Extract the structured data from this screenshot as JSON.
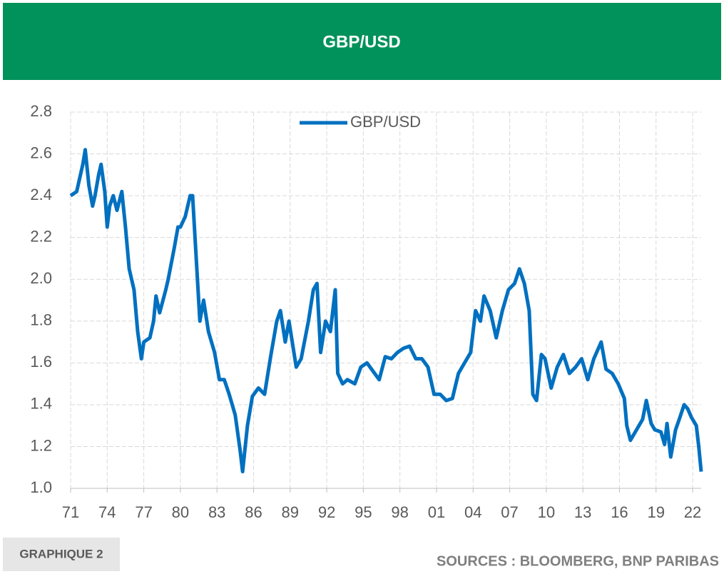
{
  "chart_data": {
    "type": "line",
    "title": "GBP/USD",
    "series": [
      {
        "name": "GBP/USD",
        "color": "#0070c0",
        "x": [
          1971.0,
          1971.5,
          1972.0,
          1972.2,
          1972.5,
          1972.8,
          1973.0,
          1973.3,
          1973.5,
          1973.8,
          1974.0,
          1974.2,
          1974.5,
          1974.8,
          1975.2,
          1975.5,
          1975.8,
          1976.2,
          1976.5,
          1976.8,
          1977.0,
          1977.5,
          1977.8,
          1978.0,
          1978.3,
          1978.8,
          1979.0,
          1979.5,
          1979.8,
          1980.0,
          1980.4,
          1980.8,
          1981.0,
          1981.3,
          1981.6,
          1981.9,
          1982.3,
          1982.8,
          1983.2,
          1983.6,
          1984.0,
          1984.5,
          1984.9,
          1985.1,
          1985.5,
          1985.9,
          1986.4,
          1986.9,
          1987.4,
          1987.9,
          1988.2,
          1988.6,
          1988.9,
          1989.5,
          1989.9,
          1990.5,
          1990.9,
          1991.2,
          1991.5,
          1991.9,
          1992.3,
          1992.7,
          1992.9,
          1993.3,
          1993.7,
          1994.3,
          1994.8,
          1995.3,
          1995.8,
          1996.3,
          1996.8,
          1997.3,
          1997.8,
          1998.3,
          1998.8,
          1999.3,
          1999.8,
          2000.3,
          2000.8,
          2001.3,
          2001.8,
          2002.3,
          2002.8,
          2003.3,
          2003.8,
          2004.2,
          2004.6,
          2004.9,
          2005.4,
          2005.9,
          2006.4,
          2006.9,
          2007.4,
          2007.8,
          2008.2,
          2008.6,
          2008.9,
          2009.2,
          2009.6,
          2009.9,
          2010.4,
          2010.9,
          2011.4,
          2011.9,
          2012.4,
          2012.9,
          2013.4,
          2013.9,
          2014.5,
          2014.9,
          2015.4,
          2015.9,
          2016.4,
          2016.6,
          2016.9,
          2017.4,
          2017.9,
          2018.2,
          2018.6,
          2018.9,
          2019.4,
          2019.7,
          2019.9,
          2020.2,
          2020.6,
          2020.9,
          2021.3,
          2021.6,
          2021.9,
          2022.3,
          2022.5,
          2022.7
        ],
        "values": [
          2.4,
          2.42,
          2.55,
          2.62,
          2.45,
          2.35,
          2.4,
          2.5,
          2.55,
          2.42,
          2.25,
          2.35,
          2.4,
          2.33,
          2.42,
          2.25,
          2.05,
          1.95,
          1.75,
          1.62,
          1.7,
          1.72,
          1.8,
          1.92,
          1.84,
          1.95,
          2.0,
          2.15,
          2.25,
          2.25,
          2.3,
          2.4,
          2.4,
          2.1,
          1.8,
          1.9,
          1.75,
          1.65,
          1.52,
          1.52,
          1.45,
          1.35,
          1.18,
          1.08,
          1.3,
          1.44,
          1.48,
          1.45,
          1.63,
          1.8,
          1.85,
          1.7,
          1.8,
          1.58,
          1.62,
          1.8,
          1.95,
          1.98,
          1.65,
          1.8,
          1.75,
          1.95,
          1.55,
          1.5,
          1.52,
          1.5,
          1.58,
          1.6,
          1.56,
          1.52,
          1.63,
          1.62,
          1.65,
          1.67,
          1.68,
          1.62,
          1.62,
          1.58,
          1.45,
          1.45,
          1.42,
          1.43,
          1.55,
          1.6,
          1.65,
          1.85,
          1.8,
          1.92,
          1.85,
          1.72,
          1.85,
          1.95,
          1.98,
          2.05,
          1.98,
          1.85,
          1.45,
          1.42,
          1.64,
          1.62,
          1.48,
          1.58,
          1.64,
          1.55,
          1.58,
          1.62,
          1.52,
          1.62,
          1.7,
          1.57,
          1.55,
          1.5,
          1.43,
          1.3,
          1.23,
          1.28,
          1.33,
          1.42,
          1.31,
          1.28,
          1.27,
          1.21,
          1.31,
          1.15,
          1.28,
          1.33,
          1.4,
          1.38,
          1.34,
          1.3,
          1.2,
          1.08
        ]
      }
    ],
    "xlim": [
      1971,
      2022.7
    ],
    "xticks": [
      {
        "value": 1971,
        "label": "71"
      },
      {
        "value": 1974,
        "label": "74"
      },
      {
        "value": 1977,
        "label": "77"
      },
      {
        "value": 1980,
        "label": "80"
      },
      {
        "value": 1983,
        "label": "83"
      },
      {
        "value": 1986,
        "label": "86"
      },
      {
        "value": 1989,
        "label": "89"
      },
      {
        "value": 1992,
        "label": "92"
      },
      {
        "value": 1995,
        "label": "95"
      },
      {
        "value": 1998,
        "label": "98"
      },
      {
        "value": 2001,
        "label": "01"
      },
      {
        "value": 2004,
        "label": "04"
      },
      {
        "value": 2007,
        "label": "07"
      },
      {
        "value": 2010,
        "label": "10"
      },
      {
        "value": 2013,
        "label": "13"
      },
      {
        "value": 2016,
        "label": "16"
      },
      {
        "value": 2019,
        "label": "19"
      },
      {
        "value": 2022,
        "label": "22"
      }
    ],
    "ylim": [
      1.0,
      2.8
    ],
    "yticks": [
      {
        "value": 1,
        "label": "1.0"
      },
      1.2,
      1.4,
      1.6,
      1.8,
      {
        "value": 2,
        "label": "2.0"
      },
      2.2,
      2.4,
      2.6,
      2.8
    ],
    "grid": true,
    "legend": "top"
  },
  "footer": {
    "label": "GRAPHIQUE 2",
    "source": "SOURCES : BLOOMBERG, BNP PARIBAS"
  }
}
